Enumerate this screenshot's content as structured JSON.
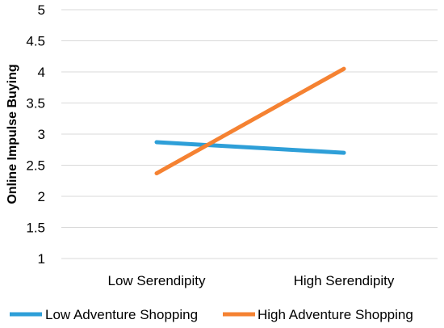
{
  "chart_data": {
    "type": "line",
    "categories": [
      "Low Serendipity",
      "High Serendipity"
    ],
    "series": [
      {
        "name": "Low Adventure Shopping",
        "values": [
          2.87,
          2.7
        ],
        "color": "#2e9fd8"
      },
      {
        "name": "High Adventure Shopping",
        "values": [
          2.37,
          4.05
        ],
        "color": "#f58232"
      }
    ],
    "title": "",
    "xlabel": "",
    "ylabel": "Online Impulse Buying",
    "ylim": [
      1,
      5
    ],
    "yticks": [
      "1",
      "1.5",
      "2",
      "2.5",
      "3",
      "3.5",
      "4",
      "4.5",
      "5"
    ],
    "grid": true,
    "legend_position": "bottom"
  }
}
